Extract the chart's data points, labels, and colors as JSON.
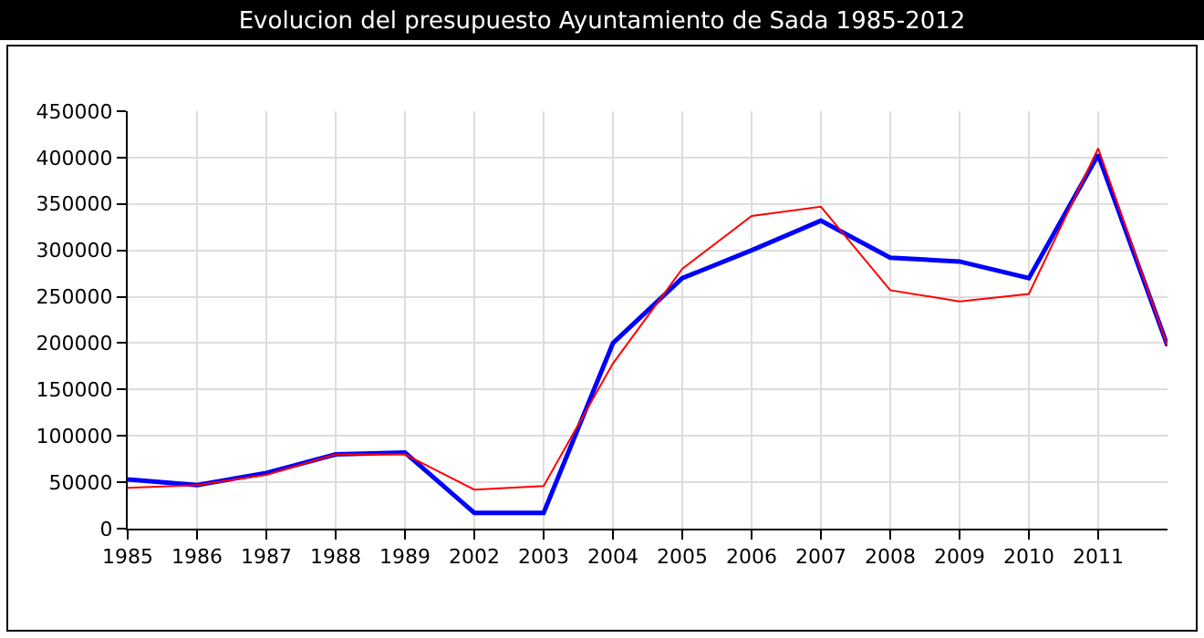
{
  "chart_data": {
    "type": "line",
    "title": "Evolucion del presupuesto Ayuntamiento de Sada 1985-2012",
    "categories": [
      "1985",
      "1986",
      "1987",
      "1988",
      "1989",
      "2002",
      "2003",
      "2004",
      "2005",
      "2006",
      "2007",
      "2008",
      "2009",
      "2010",
      "2011",
      null
    ],
    "series": [
      {
        "color": "#0000ff",
        "values": [
          53000,
          47000,
          60000,
          80000,
          82000,
          17000,
          17000,
          200000,
          270000,
          300000,
          332000,
          292000,
          288000,
          270000,
          403000,
          197000
        ]
      },
      {
        "color": "#ff0000",
        "values": [
          44000,
          47000,
          58000,
          80000,
          80000,
          42000,
          46000,
          178000,
          280000,
          337000,
          347000,
          257000,
          245000,
          253000,
          410000,
          197000
        ]
      }
    ],
    "ylim": [
      0,
      450000
    ],
    "yticks": [
      0,
      50000,
      100000,
      150000,
      200000,
      250000,
      300000,
      350000,
      400000,
      450000
    ],
    "grid": true,
    "marker": "none",
    "line_style": "solid"
  }
}
